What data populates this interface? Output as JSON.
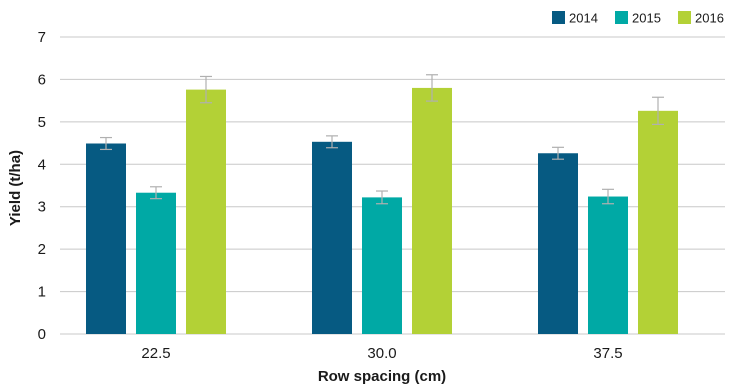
{
  "chart_data": {
    "type": "bar",
    "title": "",
    "xlabel": "Row spacing (cm)",
    "ylabel": "Yield (t/ha)",
    "ylim": [
      0,
      7
    ],
    "yticks": [
      0,
      1,
      2,
      3,
      4,
      5,
      6,
      7
    ],
    "grid": true,
    "legend_position": "top-right",
    "categories": [
      "22.5",
      "30.0",
      "37.5"
    ],
    "series": [
      {
        "name": "2014",
        "color": "#065a82",
        "values": [
          4.49,
          4.53,
          4.26
        ],
        "errors": [
          0.14,
          0.14,
          0.14
        ]
      },
      {
        "name": "2015",
        "color": "#00a9a5",
        "values": [
          3.33,
          3.22,
          3.24
        ],
        "errors": [
          0.14,
          0.15,
          0.17
        ]
      },
      {
        "name": "2016",
        "color": "#b3d136",
        "values": [
          5.76,
          5.8,
          5.26
        ],
        "errors": [
          0.31,
          0.31,
          0.32
        ]
      }
    ],
    "error_bar_color": "#b0b0b0",
    "grid_color": "#c8c8c8"
  }
}
